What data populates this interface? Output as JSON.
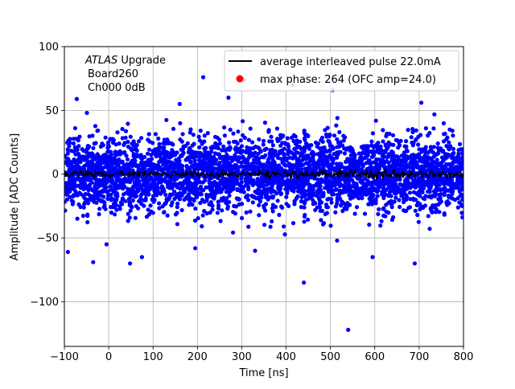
{
  "chart_data": {
    "type": "scatter",
    "title": "",
    "xlabel": "Time [ns]",
    "ylabel": "Amplitude [ADC Counts]",
    "xlim": [
      -100,
      800
    ],
    "ylim": [
      -135,
      100
    ],
    "xticks": [
      -100,
      0,
      100,
      200,
      300,
      400,
      500,
      600,
      700,
      800
    ],
    "xtick_labels": [
      "−100",
      "0",
      "100",
      "200",
      "300",
      "400",
      "500",
      "600",
      "700",
      "800"
    ],
    "yticks": [
      -100,
      -50,
      0,
      50,
      100
    ],
    "ytick_labels": [
      "−100",
      "−50",
      "0",
      "50",
      "100"
    ],
    "grid": true,
    "annotation": {
      "line1_italic": "ATLAS",
      "line1_rest": " Upgrade",
      "line2": "Board260",
      "line3": "Ch000 0dB"
    },
    "legend": {
      "placement": "upper-right",
      "entries": [
        {
          "label": "average interleaved pulse 22.0mA",
          "marker": "line",
          "color": "#000000"
        },
        {
          "label": "max phase: 264 (OFC amp=24.0)",
          "marker": "dot",
          "color": "#ff0000"
        }
      ]
    },
    "series": [
      {
        "kind": "points",
        "color": "#0000ff",
        "x_range": [
          -100,
          800
        ],
        "core_sd": 14,
        "notable_points": [
          {
            "x": -92,
            "y": -61
          },
          {
            "x": -72,
            "y": 59
          },
          {
            "x": -35,
            "y": -69
          },
          {
            "x": -5,
            "y": -55
          },
          {
            "x": 48,
            "y": -70
          },
          {
            "x": 75,
            "y": -65
          },
          {
            "x": 195,
            "y": -58
          },
          {
            "x": 213,
            "y": 76
          },
          {
            "x": 305,
            "y": 74
          },
          {
            "x": 330,
            "y": -60
          },
          {
            "x": 345,
            "y": 73
          },
          {
            "x": 440,
            "y": -85
          },
          {
            "x": 415,
            "y": 70
          },
          {
            "x": 505,
            "y": 66
          },
          {
            "x": 540,
            "y": -122
          },
          {
            "x": 595,
            "y": -65
          },
          {
            "x": 690,
            "y": -70
          },
          {
            "x": 705,
            "y": 56
          },
          {
            "x": 515,
            "y": -52
          },
          {
            "x": 160,
            "y": 55
          },
          {
            "x": 270,
            "y": 60
          }
        ]
      },
      {
        "kind": "line",
        "name": "average interleaved pulse 22.0mA",
        "color": "#000000",
        "x_range": [
          -100,
          800
        ],
        "mean": 0,
        "noise_amplitude": 1.5
      }
    ]
  }
}
